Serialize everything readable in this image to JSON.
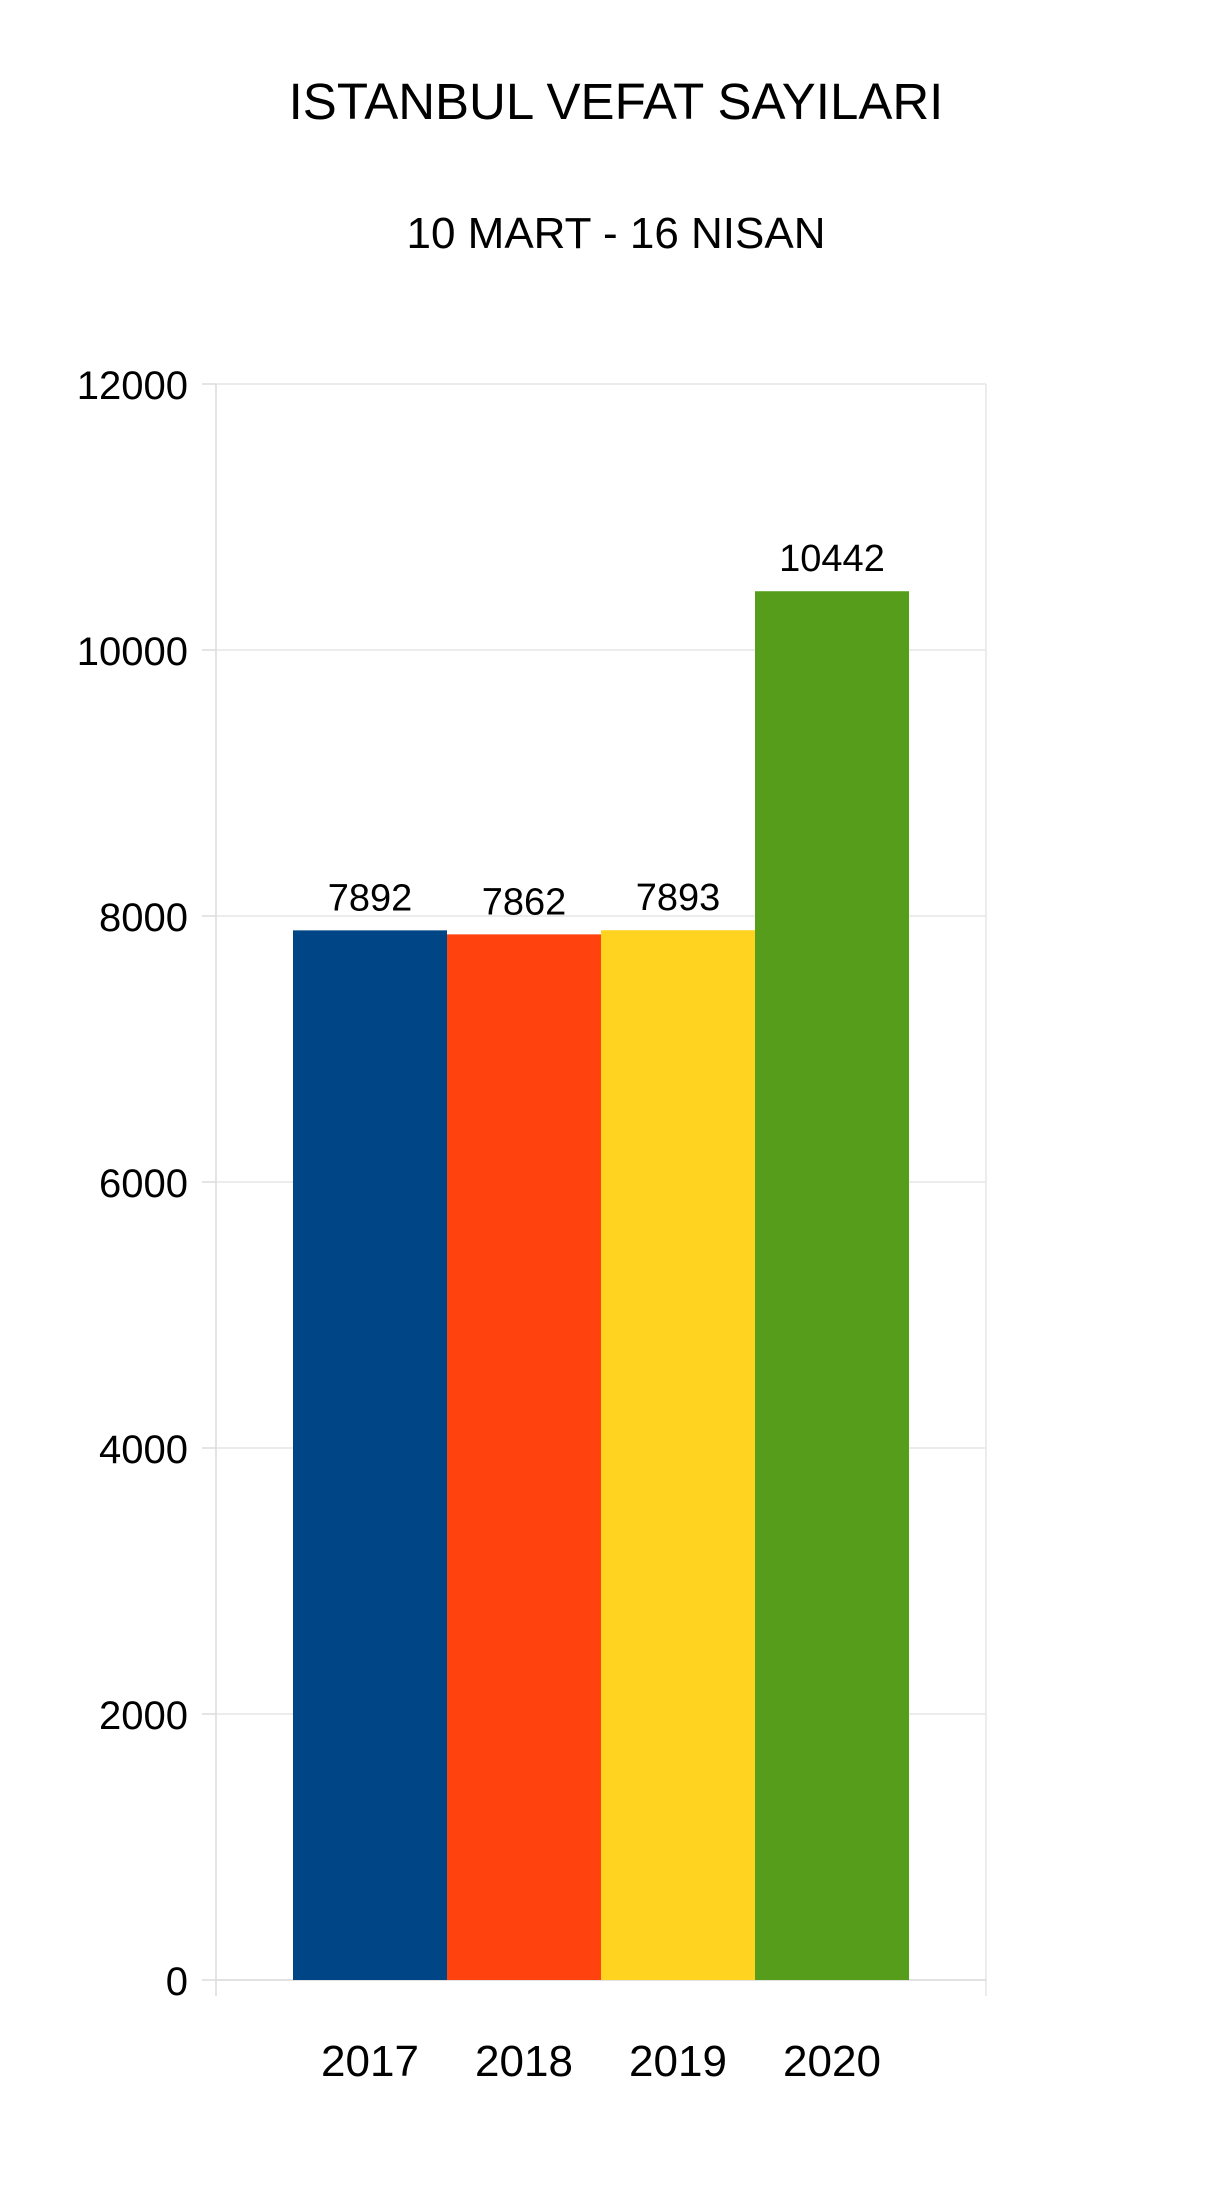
{
  "chart_data": {
    "type": "bar",
    "title": "ISTANBUL VEFAT SAYILARI",
    "subtitle": "10 MART - 16 NISAN",
    "categories": [
      "2017",
      "2018",
      "2019",
      "2020"
    ],
    "values": [
      7892,
      7862,
      7893,
      10442
    ],
    "value_labels": [
      "7892",
      "7862",
      "7893",
      "10442"
    ],
    "colors": [
      "#004586",
      "#ff420e",
      "#ffd320",
      "#579d1c"
    ],
    "ylim": [
      0,
      12000
    ],
    "yticks": [
      0,
      2000,
      4000,
      6000,
      8000,
      10000,
      12000
    ],
    "ytick_labels": [
      "0",
      "2000",
      "4000",
      "6000",
      "8000",
      "10000",
      "12000"
    ],
    "grid": true,
    "xlabel": "",
    "ylabel": ""
  }
}
